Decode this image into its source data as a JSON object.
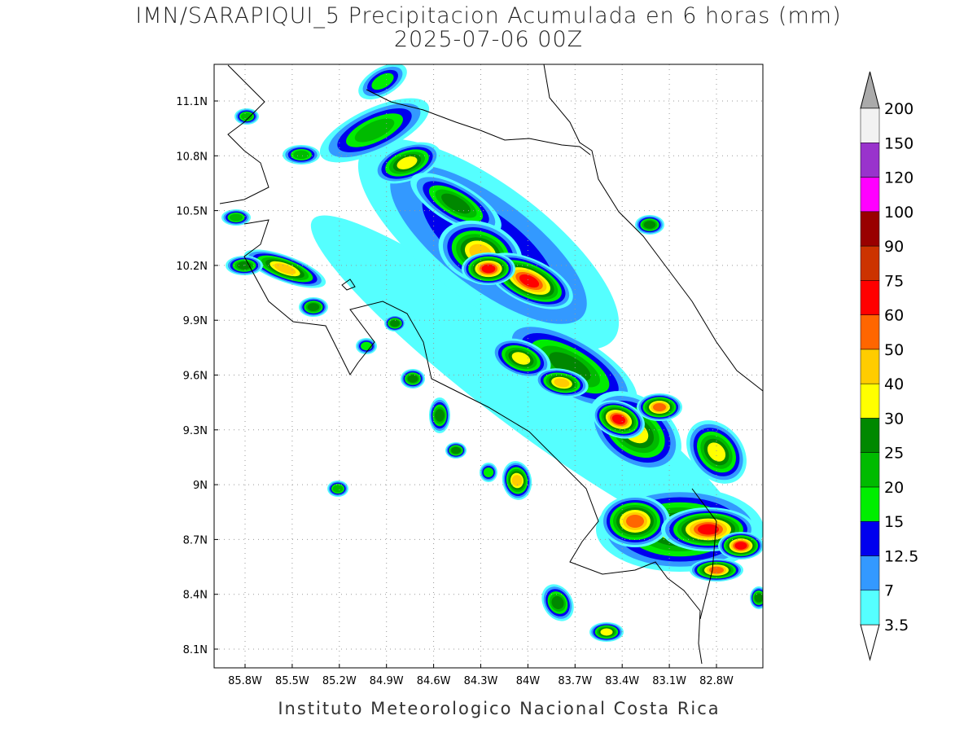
{
  "map": {
    "title": "IMN/SARAPIQUI_5 Precipitacion Acumulada en 6 horas (mm)",
    "subtitle": "2025-07-06 00Z",
    "lon_ticks": [
      "85.8W",
      "85.5W",
      "85.2W",
      "84.9W",
      "84.6W",
      "84.3W",
      "84W",
      "83.7W",
      "83.4W",
      "83.1W",
      "82.8W"
    ],
    "lat_ticks": [
      "11.1N",
      "10.8N",
      "10.5N",
      "10.2N",
      "9.9N",
      "9.6N",
      "9.3N",
      "9N",
      "8.7N",
      "8.4N",
      "8.1N"
    ],
    "colorbar": {
      "levels": [
        3.5,
        7,
        12.5,
        15,
        20,
        25,
        30,
        40,
        50,
        60,
        75,
        90,
        100,
        120,
        150,
        200
      ],
      "colors": [
        "#55ffff",
        "#3399ff",
        "#0000ee",
        "#00ee00",
        "#00bb00",
        "#008800",
        "#ffff00",
        "#ffcc00",
        "#ff6600",
        "#ff0000",
        "#cc3300",
        "#990000",
        "#ff00ff",
        "#9933cc",
        "#f2f2f2"
      ],
      "under_color": "#ffffff",
      "over_color": "#aaaaaa"
    },
    "footer": "Instituto Meteorologico Nacional Costa Rica"
  }
}
